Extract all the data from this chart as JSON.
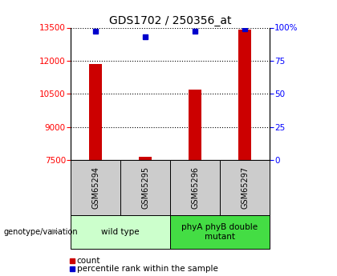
{
  "title": "GDS1702 / 250356_at",
  "samples": [
    "GSM65294",
    "GSM65295",
    "GSM65296",
    "GSM65297"
  ],
  "counts": [
    11850,
    7650,
    10700,
    13400
  ],
  "percentiles": [
    97,
    93,
    97,
    99
  ],
  "ylim_left": [
    7500,
    13500
  ],
  "ylim_right": [
    0,
    100
  ],
  "yticks_left": [
    7500,
    9000,
    10500,
    12000,
    13500
  ],
  "yticks_right": [
    0,
    25,
    50,
    75,
    100
  ],
  "ytick_labels_right": [
    "0",
    "25",
    "50",
    "75",
    "100%"
  ],
  "bar_color": "#cc0000",
  "dot_color": "#0000cc",
  "bar_width": 0.25,
  "groups": [
    {
      "label": "wild type",
      "samples": [
        0,
        1
      ],
      "color": "#ccffcc"
    },
    {
      "label": "phyA phyB double\nmutant",
      "samples": [
        2,
        3
      ],
      "color": "#44dd44"
    }
  ],
  "genotype_label": "genotype/variation",
  "legend_count_label": "count",
  "legend_percentile_label": "percentile rank within the sample",
  "background_plot": "#ffffff",
  "background_sample_row": "#cccccc",
  "title_fontsize": 10,
  "tick_fontsize": 7.5,
  "label_fontsize": 8
}
